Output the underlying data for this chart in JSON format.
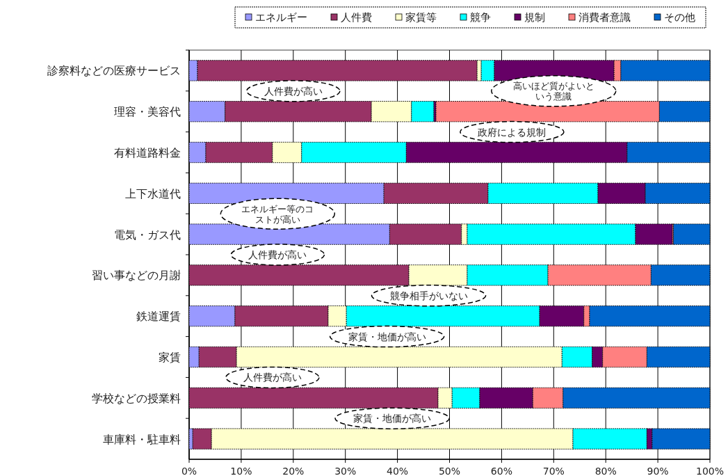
{
  "chart_data": {
    "type": "bar",
    "orientation": "horizontal",
    "stacked": true,
    "categories": [
      "診察料などの医療サービス",
      "理容・美容代",
      "有料道路料金",
      "上下水道代",
      "電気・ガス代",
      "習い事などの月謝",
      "鉄道運賃",
      "家賃",
      "学校などの授業料",
      "車庫料・駐車料"
    ],
    "series": [
      {
        "name": "エネルギー",
        "color": "#9999ff",
        "values": [
          1.6,
          6.9,
          3.2,
          37.4,
          38.5,
          0,
          8.8,
          1.9,
          0,
          0.7
        ]
      },
      {
        "name": "人件費",
        "color": "#993366",
        "values": [
          53.7,
          28.1,
          12.8,
          20.0,
          13.8,
          42.2,
          17.9,
          7.2,
          47.8,
          3.6
        ]
      },
      {
        "name": "家賃等",
        "color": "#ffffcc",
        "values": [
          0.8,
          7.7,
          5.6,
          0,
          1.1,
          11.2,
          3.5,
          62.5,
          2.7,
          69.4
        ]
      },
      {
        "name": "競争",
        "color": "#00ffff",
        "values": [
          2.5,
          4.3,
          20.1,
          21.1,
          32.3,
          15.5,
          37.1,
          5.8,
          5.3,
          14.2
        ]
      },
      {
        "name": "規制",
        "color": "#660066",
        "values": [
          23.0,
          0.4,
          42.4,
          9.1,
          7.1,
          0,
          8.5,
          2.0,
          10.2,
          1.0
        ]
      },
      {
        "name": "消費者意識",
        "color": "#ff8080",
        "values": [
          1.3,
          42.9,
          0,
          0,
          0.2,
          19.8,
          1.1,
          8.5,
          5.8,
          0
        ]
      },
      {
        "name": "その他",
        "color": "#0066cc",
        "values": [
          17.1,
          9.7,
          15.9,
          12.4,
          7.0,
          11.3,
          23.1,
          12.1,
          28.2,
          11.1
        ]
      }
    ],
    "xlim": [
      0,
      100
    ],
    "xticks": [
      {
        "value": 0,
        "label": "0%"
      },
      {
        "value": 10,
        "label": "10%"
      },
      {
        "value": 20,
        "label": "20%"
      },
      {
        "value": 30,
        "label": "30%"
      },
      {
        "value": 40,
        "label": "40%"
      },
      {
        "value": 50,
        "label": "50%"
      },
      {
        "value": 60,
        "label": "60%"
      },
      {
        "value": 70,
        "label": "70%"
      },
      {
        "value": 80,
        "label": "80%"
      },
      {
        "value": 90,
        "label": "90%"
      },
      {
        "value": 100,
        "label": "100%"
      }
    ],
    "grid": "x",
    "legend": "top",
    "annotations": [
      "人件費が高い",
      "高いほど質がよいという意識",
      "政府による規制",
      "エネルギー等のコストが高い",
      "人件費が高い",
      "競争相手がいない",
      "家賃・地価が高い",
      "人件費が高い",
      "家賃・地価が高い"
    ]
  }
}
